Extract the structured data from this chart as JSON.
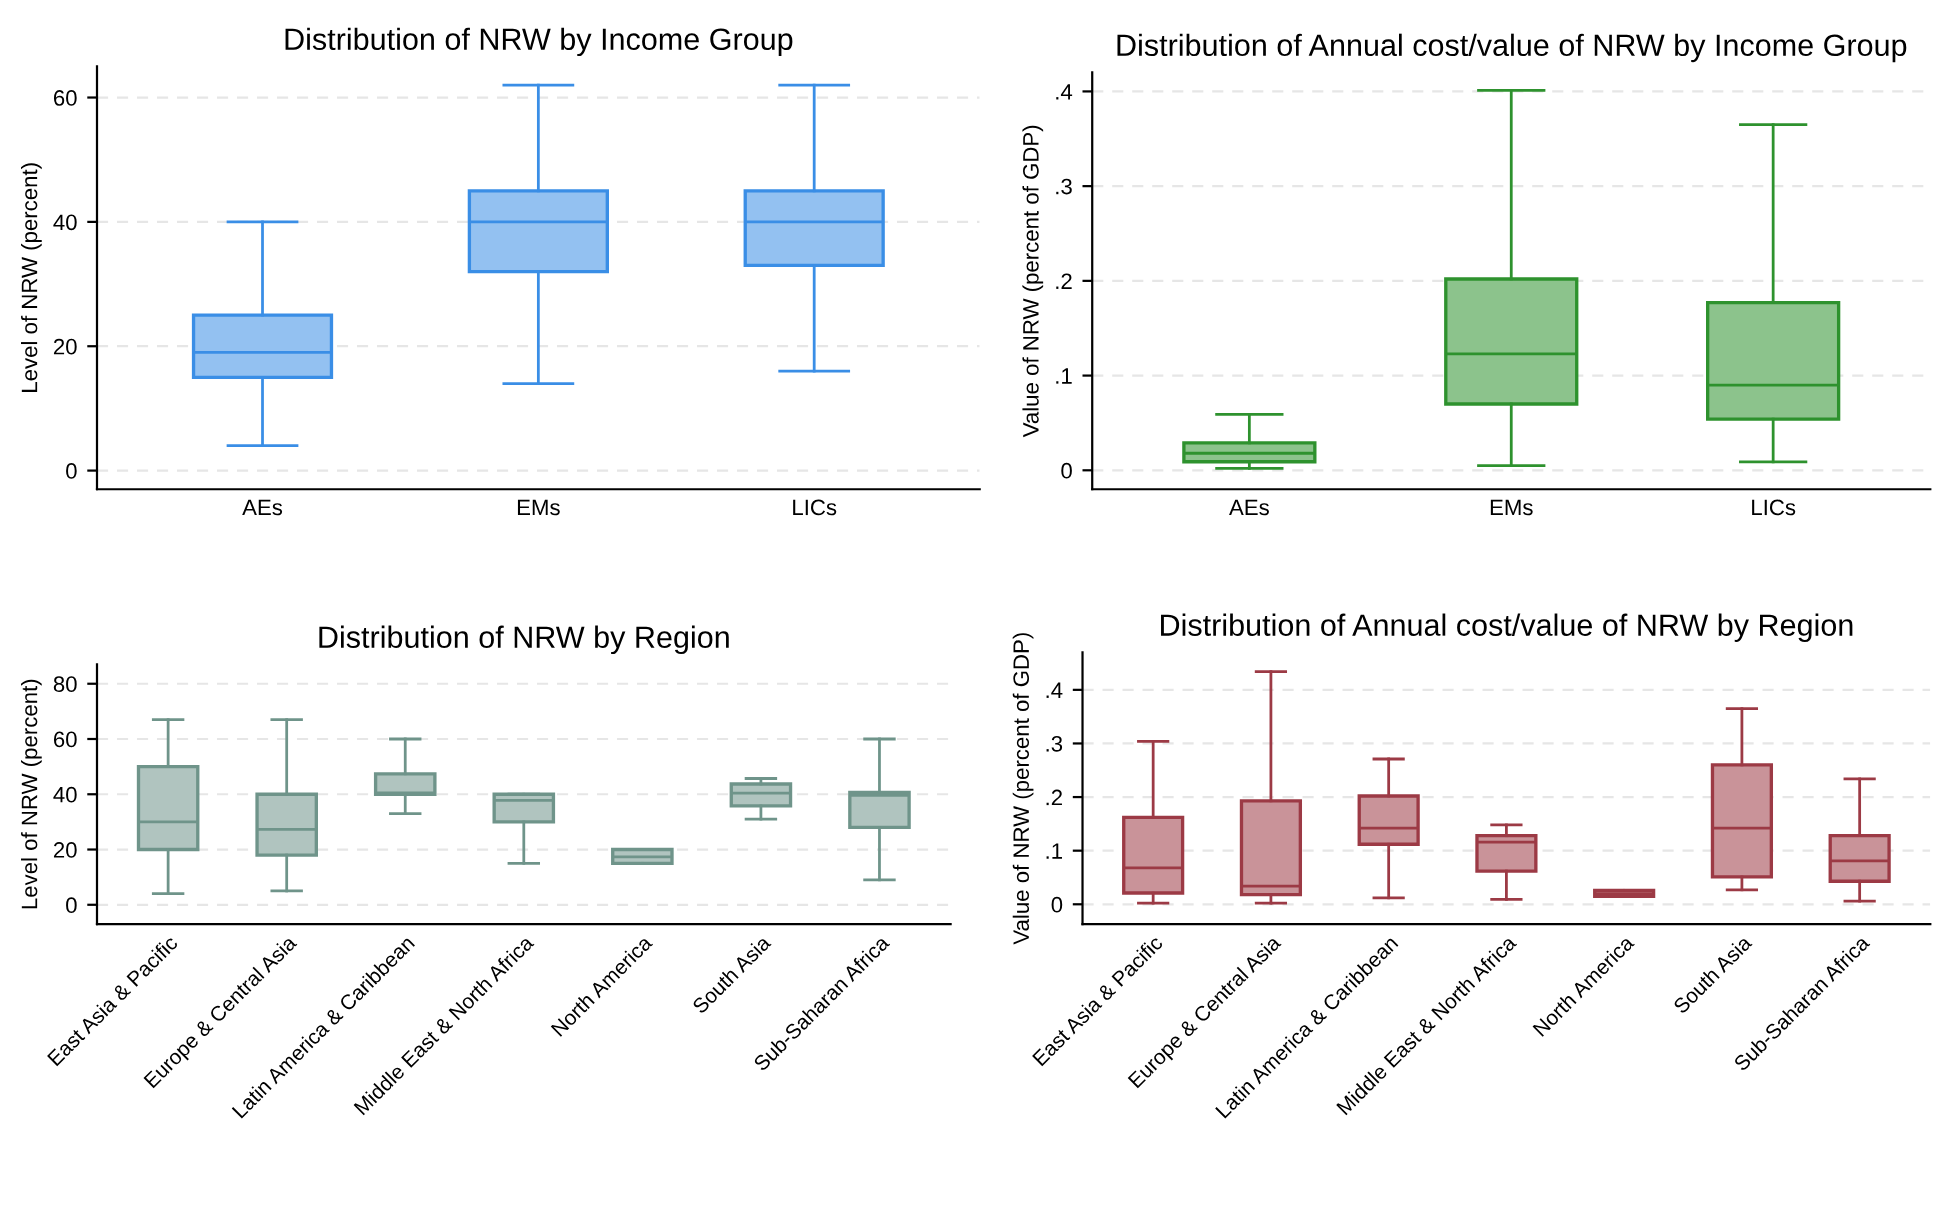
{
  "chart_data": [
    {
      "type": "box",
      "title": "Distribution of NRW by Income Group",
      "ylabel": "Level of NRW (percent)",
      "categories": [
        "AEs",
        "EMs",
        "LICs"
      ],
      "ylim": [
        -3,
        65
      ],
      "yticks": [
        0,
        20,
        40,
        60
      ],
      "grid": "y",
      "series": [
        {
          "color": "#3a8ee6",
          "boxes": [
            {
              "low": 4,
              "q1": 15,
              "median": 19,
              "q3": 25,
              "high": 40
            },
            {
              "low": 14,
              "q1": 32,
              "median": 40,
              "q3": 45,
              "high": 62
            },
            {
              "low": 16,
              "q1": 33,
              "median": 40,
              "q3": 45,
              "high": 62
            }
          ]
        }
      ]
    },
    {
      "type": "box",
      "title": "Distribution of Annual cost/value of NRW by Income Group",
      "ylabel": "Value of NRW (percent of GDP)",
      "categories": [
        "AEs",
        "EMs",
        "LICs"
      ],
      "ylim": [
        -0.02,
        0.42
      ],
      "yticks": [
        0,
        {
          "value": 0.1,
          "label": ".1"
        },
        {
          "value": 0.2,
          "label": ".2"
        },
        {
          "value": 0.3,
          "label": ".3"
        },
        {
          "value": 0.4,
          "label": ".4"
        }
      ],
      "grid": "y",
      "series": [
        {
          "color": "#2e922e",
          "boxes": [
            {
              "low": 0.002,
              "q1": 0.009,
              "median": 0.018,
              "q3": 0.029,
              "high": 0.059
            },
            {
              "low": 0.005,
              "q1": 0.07,
              "median": 0.123,
              "q3": 0.202,
              "high": 0.401
            },
            {
              "low": 0.009,
              "q1": 0.054,
              "median": 0.09,
              "q3": 0.177,
              "high": 0.365
            }
          ]
        }
      ]
    },
    {
      "type": "box",
      "title": "Distribution of NRW by Region",
      "ylabel": "Level of NRW (percent)",
      "categories": [
        "East Asia & Pacific",
        "Europe & Central Asia",
        "Latin America & Caribbean",
        "Middle East & North Africa",
        "North America",
        "South Asia",
        "Sub-Saharan Africa"
      ],
      "ylim": [
        -7,
        87
      ],
      "yticks": [
        0,
        20,
        40,
        60,
        80
      ],
      "grid": "y",
      "series": [
        {
          "color": "#6f948a",
          "boxes": [
            {
              "low": 4,
              "q1": 20,
              "median": 30,
              "q3": 50,
              "high": 67
            },
            {
              "low": 5,
              "q1": 18,
              "median": 27.3,
              "q3": 40,
              "high": 67
            },
            {
              "low": 33,
              "q1": 40,
              "median": 40.5,
              "q3": 47.4,
              "high": 60
            },
            {
              "low": 15,
              "q1": 30,
              "median": 37.8,
              "q3": 40,
              "high": 40
            },
            {
              "low": 15,
              "q1": 15,
              "median": 17.3,
              "q3": 20,
              "high": 20
            },
            {
              "low": 31,
              "q1": 35.8,
              "median": 40.4,
              "q3": 43.7,
              "high": 45.7
            },
            {
              "low": 9,
              "q1": 28,
              "median": 39.6,
              "q3": 40.7,
              "high": 60
            }
          ]
        }
      ]
    },
    {
      "type": "box",
      "title": "Distribution of Annual cost/value of NRW by Region",
      "ylabel": "Value of NRW (percent of GDP)",
      "categories": [
        "East Asia & Pacific",
        "Europe & Central Asia",
        "Latin America & Caribbean",
        "Middle East & North Africa",
        "North America",
        "South Asia",
        "Sub-Saharan Africa"
      ],
      "ylim": [
        -0.037,
        0.47
      ],
      "yticks": [
        0,
        {
          "value": 0.1,
          "label": ".1"
        },
        {
          "value": 0.2,
          "label": ".2"
        },
        {
          "value": 0.3,
          "label": ".3"
        },
        {
          "value": 0.4,
          "label": ".4"
        }
      ],
      "grid": "y",
      "series": [
        {
          "color": "#9c3a45",
          "boxes": [
            {
              "low": 0.002,
              "q1": 0.021,
              "median": 0.068,
              "q3": 0.162,
              "high": 0.304
            },
            {
              "low": 0.002,
              "q1": 0.018,
              "median": 0.034,
              "q3": 0.193,
              "high": 0.434
            },
            {
              "low": 0.012,
              "q1": 0.112,
              "median": 0.142,
              "q3": 0.202,
              "high": 0.271
            },
            {
              "low": 0.009,
              "q1": 0.062,
              "median": 0.116,
              "q3": 0.128,
              "high": 0.148
            },
            {
              "low": 0.015,
              "q1": 0.015,
              "median": 0.02,
              "q3": 0.026,
              "high": 0.026
            },
            {
              "low": 0.027,
              "q1": 0.051,
              "median": 0.142,
              "q3": 0.26,
              "high": 0.365
            },
            {
              "low": 0.006,
              "q1": 0.043,
              "median": 0.081,
              "q3": 0.128,
              "high": 0.234
            }
          ]
        }
      ]
    }
  ]
}
